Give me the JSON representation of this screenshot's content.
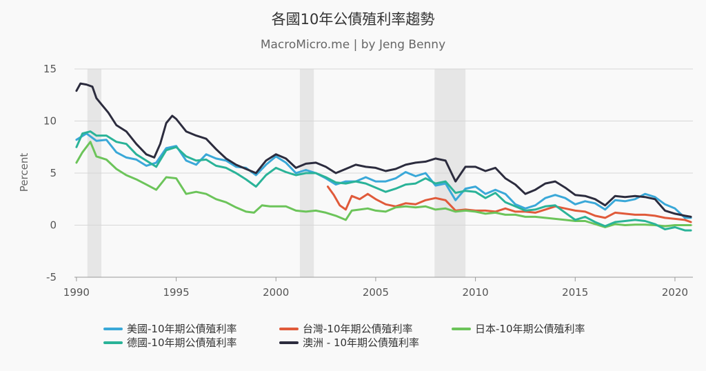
{
  "chart_data": {
    "type": "line",
    "title": "各國10年公債殖利率趨勢",
    "subtitle": "MacroMicro.me | by Jeng Benny",
    "ylabel": "Percent",
    "xlabel": "",
    "ylim": [
      -5,
      15
    ],
    "yticks": [
      "15",
      "10",
      "5",
      "0",
      "-5"
    ],
    "xlim": [
      1989.9,
      2020.9
    ],
    "xticks": [
      "1990",
      "1995",
      "2000",
      "2005",
      "2010",
      "2015",
      "2020"
    ],
    "grid": "horizontal",
    "legend_position": "bottom",
    "recessions": [
      [
        1990.55,
        1991.25
      ],
      [
        2001.2,
        2001.9
      ],
      [
        2007.95,
        2009.5
      ]
    ],
    "series": [
      {
        "name": "美國-10年期公債殖利率",
        "color": "#3aa8d8",
        "x": [
          1990.0,
          1990.5,
          1991.0,
          1991.5,
          1992.0,
          1992.5,
          1993.0,
          1993.5,
          1994.0,
          1994.5,
          1995.0,
          1995.5,
          1996.0,
          1996.5,
          1997.0,
          1997.5,
          1998.0,
          1998.5,
          1999.0,
          1999.5,
          2000.0,
          2000.5,
          2001.0,
          2001.5,
          2002.0,
          2002.5,
          2003.0,
          2003.5,
          2004.0,
          2004.5,
          2005.0,
          2005.5,
          2006.0,
          2006.5,
          2007.0,
          2007.5,
          2008.0,
          2008.5,
          2009.0,
          2009.5,
          2010.0,
          2010.5,
          2011.0,
          2011.5,
          2012.0,
          2012.5,
          2013.0,
          2013.5,
          2014.0,
          2014.5,
          2015.0,
          2015.5,
          2016.0,
          2016.5,
          2017.0,
          2017.5,
          2018.0,
          2018.5,
          2019.0,
          2019.5,
          2020.0,
          2020.5,
          2020.8
        ],
        "values": [
          8.2,
          8.8,
          8.1,
          8.2,
          7.0,
          6.5,
          6.3,
          5.7,
          6.0,
          7.4,
          7.6,
          6.2,
          5.8,
          6.8,
          6.4,
          6.2,
          5.6,
          5.5,
          4.8,
          5.8,
          6.6,
          6.0,
          5.0,
          5.3,
          5.0,
          4.5,
          3.9,
          4.2,
          4.2,
          4.6,
          4.2,
          4.2,
          4.5,
          5.1,
          4.7,
          5.0,
          3.8,
          4.0,
          2.4,
          3.5,
          3.7,
          3.0,
          3.4,
          3.0,
          2.0,
          1.6,
          1.9,
          2.6,
          2.9,
          2.6,
          2.0,
          2.3,
          2.1,
          1.5,
          2.4,
          2.3,
          2.5,
          3.0,
          2.7,
          2.0,
          1.6,
          0.7,
          0.7
        ]
      },
      {
        "name": "台灣-10年期公債殖利率",
        "color": "#e05a3a",
        "x": [
          2002.6,
          2002.9,
          2003.2,
          2003.5,
          2003.8,
          2004.2,
          2004.6,
          2005.0,
          2005.5,
          2006.0,
          2006.5,
          2007.0,
          2007.5,
          2008.0,
          2008.5,
          2009.0,
          2009.5,
          2010.0,
          2010.5,
          2011.0,
          2011.5,
          2012.0,
          2012.5,
          2013.0,
          2013.5,
          2014.0,
          2014.5,
          2015.0,
          2015.5,
          2016.0,
          2016.5,
          2017.0,
          2017.5,
          2018.0,
          2018.5,
          2019.0,
          2019.5,
          2020.0,
          2020.5,
          2020.8
        ],
        "values": [
          3.7,
          2.9,
          1.9,
          1.5,
          2.8,
          2.5,
          3.0,
          2.5,
          2.0,
          1.8,
          2.1,
          2.0,
          2.4,
          2.6,
          2.4,
          1.4,
          1.5,
          1.4,
          1.4,
          1.3,
          1.6,
          1.3,
          1.3,
          1.2,
          1.5,
          1.8,
          1.6,
          1.4,
          1.3,
          0.9,
          0.7,
          1.2,
          1.1,
          1.0,
          1.0,
          0.9,
          0.7,
          0.6,
          0.5,
          0.3
        ]
      },
      {
        "name": "日本-10年期公債殖利率",
        "color": "#6cc45a",
        "x": [
          1990.0,
          1990.3,
          1990.7,
          1991.0,
          1991.5,
          1992.0,
          1992.5,
          1993.0,
          1993.5,
          1994.0,
          1994.5,
          1995.0,
          1995.5,
          1996.0,
          1996.5,
          1997.0,
          1997.5,
          1998.0,
          1998.5,
          1998.9,
          1999.3,
          1999.7,
          2000.0,
          2000.5,
          2001.0,
          2001.5,
          2002.0,
          2002.5,
          2003.0,
          2003.5,
          2003.8,
          2004.2,
          2004.6,
          2005.0,
          2005.5,
          2006.0,
          2006.5,
          2007.0,
          2007.5,
          2008.0,
          2008.5,
          2009.0,
          2009.5,
          2010.0,
          2010.5,
          2011.0,
          2011.5,
          2012.0,
          2012.5,
          2013.0,
          2013.5,
          2014.0,
          2014.5,
          2015.0,
          2015.5,
          2016.0,
          2016.5,
          2017.0,
          2017.5,
          2018.0,
          2018.5,
          2019.0,
          2019.5,
          2020.0,
          2020.5,
          2020.8
        ],
        "values": [
          6.0,
          7.0,
          8.0,
          6.6,
          6.3,
          5.4,
          4.8,
          4.4,
          3.9,
          3.4,
          4.6,
          4.5,
          3.0,
          3.2,
          3.0,
          2.5,
          2.2,
          1.7,
          1.3,
          1.2,
          1.9,
          1.8,
          1.8,
          1.8,
          1.4,
          1.3,
          1.4,
          1.2,
          0.9,
          0.5,
          1.4,
          1.5,
          1.6,
          1.4,
          1.3,
          1.7,
          1.8,
          1.7,
          1.8,
          1.5,
          1.6,
          1.3,
          1.4,
          1.3,
          1.1,
          1.2,
          1.0,
          1.0,
          0.8,
          0.8,
          0.7,
          0.6,
          0.5,
          0.4,
          0.4,
          0.1,
          -0.2,
          0.1,
          0.0,
          0.05,
          0.05,
          0.0,
          -0.1,
          0.0,
          0.0,
          0.0
        ]
      },
      {
        "name": "德國-10年期公債殖利率",
        "color": "#2ab398",
        "x": [
          1990.0,
          1990.3,
          1990.7,
          1991.0,
          1991.5,
          1992.0,
          1992.5,
          1993.0,
          1993.5,
          1994.0,
          1994.5,
          1995.0,
          1995.5,
          1996.0,
          1996.5,
          1997.0,
          1997.5,
          1998.0,
          1998.5,
          1999.0,
          1999.5,
          2000.0,
          2000.5,
          2001.0,
          2001.5,
          2002.0,
          2002.5,
          2003.0,
          2003.5,
          2004.0,
          2004.5,
          2005.0,
          2005.5,
          2006.0,
          2006.5,
          2007.0,
          2007.5,
          2008.0,
          2008.5,
          2009.0,
          2009.5,
          2010.0,
          2010.5,
          2011.0,
          2011.5,
          2012.0,
          2012.5,
          2013.0,
          2013.5,
          2014.0,
          2014.5,
          2015.0,
          2015.5,
          2016.0,
          2016.5,
          2017.0,
          2017.5,
          2018.0,
          2018.5,
          2019.0,
          2019.5,
          2020.0,
          2020.5,
          2020.8
        ],
        "values": [
          7.5,
          8.8,
          9.0,
          8.6,
          8.6,
          8.0,
          7.8,
          6.8,
          6.2,
          5.6,
          7.2,
          7.5,
          6.6,
          6.2,
          6.3,
          5.7,
          5.5,
          5.0,
          4.4,
          3.7,
          4.8,
          5.5,
          5.1,
          4.8,
          5.0,
          5.0,
          4.6,
          4.1,
          4.0,
          4.2,
          4.0,
          3.6,
          3.2,
          3.5,
          3.9,
          4.0,
          4.5,
          4.0,
          4.2,
          3.1,
          3.3,
          3.2,
          2.6,
          3.1,
          2.2,
          1.8,
          1.4,
          1.5,
          1.8,
          1.9,
          1.2,
          0.5,
          0.8,
          0.3,
          -0.1,
          0.3,
          0.4,
          0.5,
          0.4,
          0.1,
          -0.4,
          -0.2,
          -0.5,
          -0.5
        ]
      },
      {
        "name": "澳洲 - 10年期公債殖利率",
        "color": "#2c2c3e",
        "x": [
          1990.0,
          1990.2,
          1990.5,
          1990.8,
          1991.0,
          1991.3,
          1991.6,
          1992.0,
          1992.5,
          1993.0,
          1993.5,
          1993.9,
          1994.2,
          1994.5,
          1994.8,
          1995.0,
          1995.5,
          1996.0,
          1996.5,
          1997.0,
          1997.5,
          1998.0,
          1998.5,
          1999.0,
          1999.5,
          2000.0,
          2000.5,
          2001.0,
          2001.5,
          2002.0,
          2002.5,
          2003.0,
          2003.5,
          2004.0,
          2004.5,
          2005.0,
          2005.5,
          2006.0,
          2006.5,
          2007.0,
          2007.5,
          2008.0,
          2008.5,
          2009.0,
          2009.5,
          2010.0,
          2010.5,
          2011.0,
          2011.5,
          2012.0,
          2012.5,
          2013.0,
          2013.5,
          2014.0,
          2014.5,
          2015.0,
          2015.5,
          2016.0,
          2016.5,
          2017.0,
          2017.5,
          2018.0,
          2018.5,
          2019.0,
          2019.5,
          2020.0,
          2020.5,
          2020.8
        ],
        "values": [
          12.9,
          13.6,
          13.5,
          13.3,
          12.2,
          11.5,
          10.8,
          9.6,
          9.0,
          7.8,
          6.8,
          6.5,
          7.8,
          9.8,
          10.5,
          10.2,
          9.0,
          8.6,
          8.3,
          7.3,
          6.4,
          5.8,
          5.4,
          5.0,
          6.2,
          6.8,
          6.4,
          5.5,
          5.9,
          6.0,
          5.6,
          5.0,
          5.4,
          5.8,
          5.6,
          5.5,
          5.2,
          5.4,
          5.8,
          6.0,
          6.1,
          6.4,
          6.2,
          4.2,
          5.6,
          5.6,
          5.2,
          5.5,
          4.5,
          3.9,
          3.0,
          3.4,
          4.0,
          4.2,
          3.6,
          2.9,
          2.8,
          2.5,
          1.9,
          2.8,
          2.7,
          2.8,
          2.7,
          2.5,
          1.4,
          1.1,
          0.9,
          0.8
        ]
      }
    ]
  }
}
